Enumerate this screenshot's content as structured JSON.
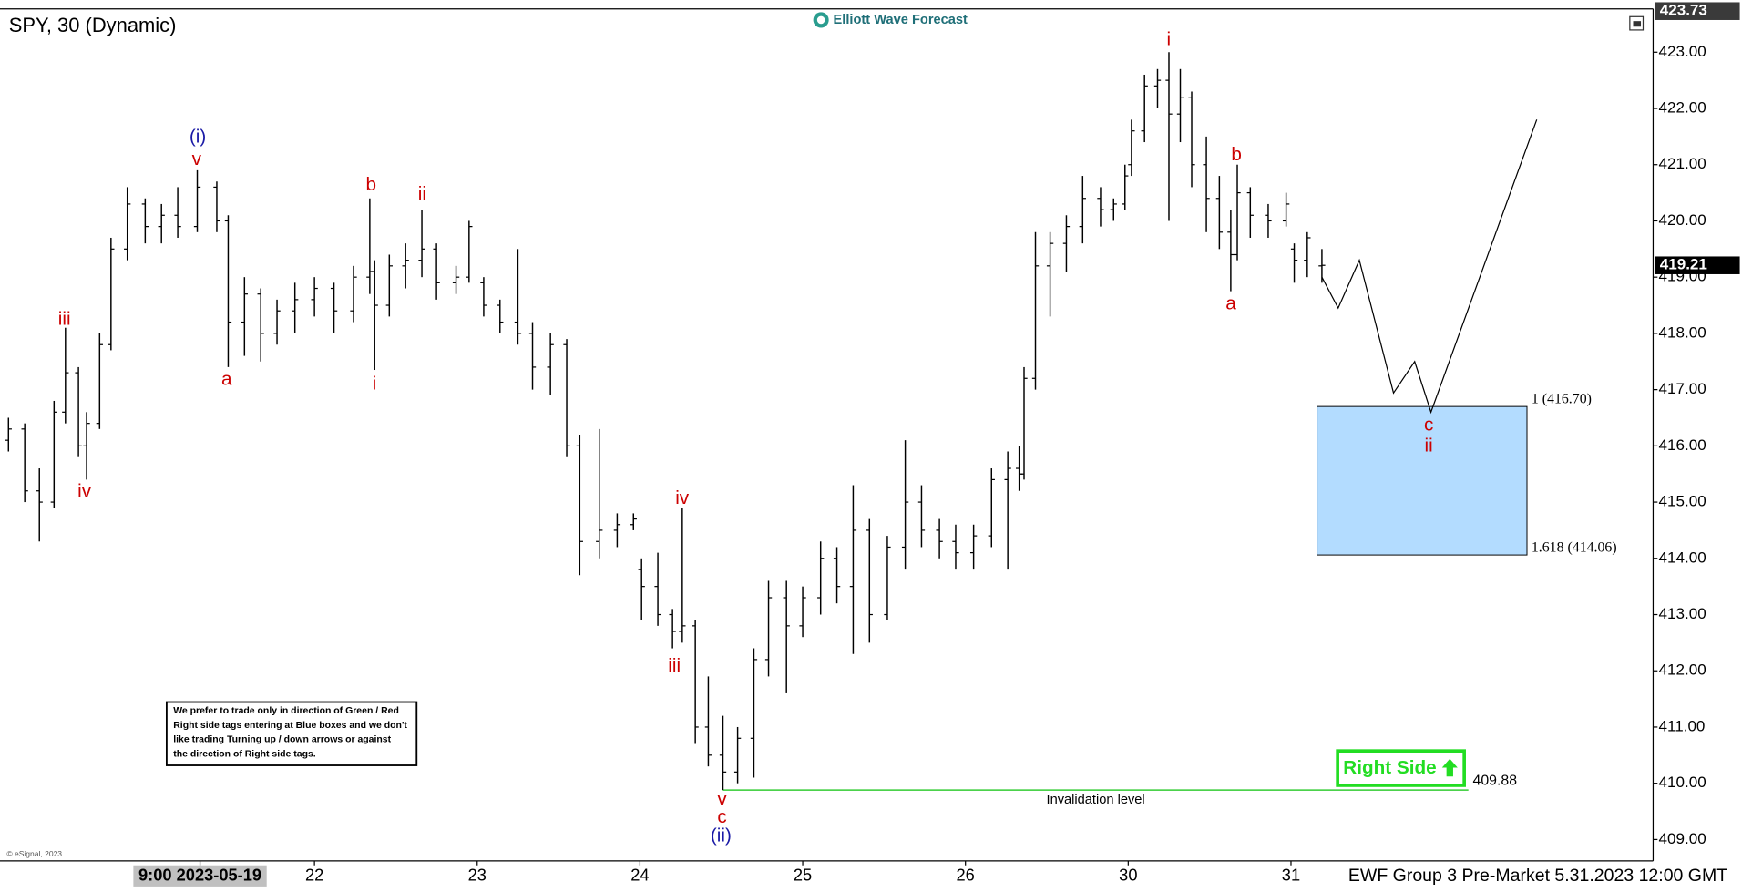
{
  "chart_data": {
    "type": "ohlc",
    "title": "SPY, 30 (Dynamic)",
    "source": "Elliott Wave Forecast",
    "footer": "EWF Group 3 Pre-Market 5.31.2023 12:00 GMT",
    "copyright": "© eSignal, 2023",
    "note": [
      "We prefer to trade only in direction of Green / Red",
      "Right side tags entering at Blue boxes and we don't",
      "like trading Turning up / down arrows or against",
      "the direction of Right side tags."
    ],
    "tag": "Right Side",
    "color": "#000000",
    "x": [
      -0.88,
      -0.78,
      -0.69,
      -0.6,
      -0.53,
      -0.45,
      -0.4,
      -0.32,
      -0.25,
      -0.15,
      -0.04,
      0.06,
      0.16,
      0.28,
      0.4,
      0.47,
      0.57,
      0.67,
      0.77,
      0.88,
      1.0,
      1.12,
      1.24,
      1.34,
      1.37,
      1.46,
      1.56,
      1.66,
      1.75,
      1.87,
      1.95,
      2.04,
      2.14,
      2.25,
      2.34,
      2.45,
      2.55,
      2.63,
      2.75,
      2.86,
      2.96,
      3.01,
      3.11,
      3.2,
      3.26,
      3.34,
      3.42,
      3.51,
      3.6,
      3.7,
      3.79,
      3.9,
      4.0,
      4.11,
      4.21,
      4.31,
      4.41,
      4.52,
      4.63,
      4.73,
      4.84,
      4.94,
      5.05,
      5.16,
      5.26,
      5.33,
      5.36,
      5.43,
      5.52,
      5.62,
      5.72,
      5.83,
      5.91,
      5.98,
      6.02,
      6.1,
      6.18,
      6.25,
      6.32,
      6.39,
      6.48,
      6.56,
      6.63,
      6.67,
      6.75,
      6.86,
      6.97,
      7.02,
      7.1,
      7.19
    ],
    "open": [
      416.1,
      416.3,
      415.2,
      415.0,
      416.6,
      417.3,
      416.0,
      416.4,
      417.8,
      419.5,
      420.3,
      419.9,
      420.1,
      419.9,
      420.6,
      420.0,
      418.2,
      418.7,
      418.0,
      418.4,
      418.6,
      418.8,
      418.4,
      419.0,
      419.1,
      418.5,
      419.2,
      419.3,
      419.5,
      418.9,
      419.0,
      418.9,
      418.5,
      418.2,
      418.0,
      417.4,
      417.8,
      416.0,
      414.3,
      414.5,
      414.6,
      413.8,
      413.5,
      413.0,
      412.7,
      412.8,
      411.0,
      410.5,
      410.2,
      410.8,
      412.2,
      413.3,
      412.8,
      413.3,
      414.0,
      413.5,
      414.5,
      413.0,
      414.2,
      415.0,
      414.5,
      414.3,
      414.1,
      414.4,
      415.4,
      415.6,
      415.5,
      417.2,
      419.2,
      419.6,
      419.9,
      420.4,
      420.2,
      420.3,
      421.0,
      421.6,
      422.4,
      422.5,
      421.9,
      422.2,
      421.0,
      420.4,
      419.8,
      419.4,
      420.5,
      420.1,
      420.0,
      419.5,
      419.3,
      419.2
    ],
    "high": [
      416.5,
      416.4,
      415.6,
      416.8,
      418.1,
      417.4,
      416.6,
      418.0,
      419.7,
      420.6,
      420.4,
      420.3,
      420.6,
      420.9,
      420.7,
      420.1,
      419.0,
      418.8,
      418.6,
      418.9,
      419.0,
      418.9,
      419.2,
      420.4,
      419.3,
      419.4,
      419.6,
      420.2,
      419.6,
      419.2,
      420.0,
      419.0,
      418.6,
      419.5,
      418.2,
      418.0,
      417.9,
      416.2,
      416.3,
      414.8,
      414.8,
      414.0,
      414.1,
      413.1,
      414.9,
      412.9,
      411.9,
      411.2,
      411.0,
      412.4,
      413.6,
      413.6,
      413.5,
      414.3,
      414.2,
      415.3,
      414.7,
      414.4,
      416.1,
      415.3,
      414.7,
      414.6,
      414.6,
      415.6,
      415.9,
      416.0,
      417.4,
      419.8,
      419.8,
      420.1,
      420.8,
      420.6,
      420.4,
      421.0,
      421.8,
      422.6,
      422.7,
      423.0,
      422.7,
      422.3,
      421.5,
      420.8,
      420.2,
      421.0,
      420.6,
      420.3,
      420.5,
      419.6,
      419.8,
      419.5
    ],
    "low": [
      415.9,
      415.0,
      414.3,
      414.9,
      416.4,
      415.8,
      415.4,
      416.3,
      417.7,
      419.3,
      419.6,
      419.6,
      419.7,
      419.8,
      419.8,
      417.4,
      417.6,
      417.5,
      417.8,
      418.0,
      418.3,
      418.0,
      418.2,
      418.7,
      417.35,
      418.3,
      418.8,
      419.0,
      418.6,
      418.7,
      418.9,
      418.3,
      418.0,
      417.8,
      417.0,
      416.9,
      415.8,
      413.7,
      414.0,
      414.2,
      414.5,
      412.9,
      412.8,
      412.4,
      412.5,
      410.7,
      410.3,
      409.88,
      410.0,
      410.1,
      411.9,
      411.6,
      412.6,
      413.0,
      413.2,
      412.3,
      412.5,
      412.9,
      413.8,
      414.2,
      414.0,
      413.8,
      413.8,
      414.2,
      413.8,
      415.2,
      415.4,
      417.0,
      418.3,
      419.1,
      419.6,
      419.9,
      420.0,
      420.2,
      420.8,
      421.4,
      422.0,
      420.0,
      421.4,
      420.6,
      419.8,
      419.5,
      418.75,
      419.3,
      419.7,
      419.7,
      419.9,
      418.9,
      419.0,
      418.9
    ],
    "close": [
      416.3,
      415.2,
      415.0,
      416.6,
      417.3,
      416.0,
      416.4,
      417.8,
      419.5,
      420.3,
      419.9,
      420.1,
      419.9,
      420.6,
      420.0,
      418.2,
      418.7,
      418.0,
      418.4,
      418.6,
      418.8,
      418.4,
      419.0,
      419.1,
      418.5,
      419.2,
      419.3,
      419.5,
      418.9,
      419.0,
      419.9,
      418.5,
      418.2,
      418.0,
      417.4,
      417.8,
      416.0,
      414.3,
      414.5,
      414.6,
      414.7,
      413.5,
      413.0,
      412.7,
      412.8,
      411.0,
      410.5,
      410.2,
      410.8,
      412.2,
      413.3,
      412.8,
      413.3,
      414.0,
      413.5,
      414.5,
      413.0,
      414.2,
      415.0,
      414.5,
      414.3,
      414.1,
      414.4,
      415.4,
      415.6,
      415.5,
      417.2,
      419.2,
      419.6,
      419.9,
      420.4,
      420.2,
      420.3,
      420.8,
      421.6,
      422.4,
      422.5,
      421.9,
      422.2,
      421.0,
      420.4,
      419.8,
      419.4,
      420.5,
      420.1,
      420.0,
      420.3,
      419.3,
      419.7,
      419.21
    ],
    "xlim": [
      -0.932,
      9.225
    ],
    "ylim": [
      408.62,
      423.77
    ],
    "xticks": [
      {
        "value": 0.297,
        "label": "9:00 2023-05-19"
      },
      {
        "value": 1,
        "label": "22"
      },
      {
        "value": 2,
        "label": "23"
      },
      {
        "value": 3,
        "label": "24"
      },
      {
        "value": 4,
        "label": "25"
      },
      {
        "value": 5,
        "label": "26"
      },
      {
        "value": 6,
        "label": "30"
      },
      {
        "value": 7,
        "label": "31"
      }
    ],
    "yticks": [
      {
        "value": 409,
        "label": "409.00"
      },
      {
        "value": 410,
        "label": "410.00"
      },
      {
        "value": 411,
        "label": "411.00"
      },
      {
        "value": 412,
        "label": "412.00"
      },
      {
        "value": 413,
        "label": "413.00"
      },
      {
        "value": 414,
        "label": "414.00"
      },
      {
        "value": 415,
        "label": "415.00"
      },
      {
        "value": 416,
        "label": "416.00"
      },
      {
        "value": 417,
        "label": "417.00"
      },
      {
        "value": 418,
        "label": "418.00"
      },
      {
        "value": 419,
        "label": "419.00"
      },
      {
        "value": 420,
        "label": "420.00"
      },
      {
        "value": 421,
        "label": "421.00"
      },
      {
        "value": 422,
        "label": "422.00"
      },
      {
        "value": 423,
        "label": "423.00"
      }
    ],
    "price_markers": [
      423.73,
      419.21
    ],
    "projection": {
      "x": [
        7.19,
        7.29,
        7.42,
        7.63,
        7.76,
        7.86,
        8.51
      ],
      "y": [
        419.0,
        418.45,
        419.3,
        416.94,
        417.5,
        416.6,
        421.8
      ]
    },
    "target_zone": {
      "x": [
        7.16,
        8.45
      ],
      "color": "#b3dcff",
      "levels": [
        {
          "value": 416.7,
          "label": "1 (416.70)"
        },
        {
          "value": 414.06,
          "label": "1.618 (414.06)"
        }
      ]
    },
    "invalidation": {
      "value": 409.88,
      "text": "Invalidation level",
      "x": [
        3.51,
        8.09
      ],
      "color": "#33cc33"
    },
    "annotations": [
      {
        "text": "(i)",
        "color": "#1a1aa6"
      },
      {
        "text": "v",
        "color": "#cc0000"
      },
      {
        "text": "iii",
        "color": "#cc0000"
      },
      {
        "text": "iv",
        "color": "#cc0000"
      },
      {
        "text": "a",
        "color": "#cc0000"
      },
      {
        "text": "b",
        "color": "#cc0000"
      },
      {
        "text": "ii",
        "color": "#cc0000"
      },
      {
        "text": "i",
        "color": "#cc0000"
      },
      {
        "text": "iv",
        "color": "#cc0000"
      },
      {
        "text": "iii",
        "color": "#cc0000"
      },
      {
        "text": "v",
        "color": "#cc0000"
      },
      {
        "text": "c",
        "color": "#cc0000"
      },
      {
        "text": "(ii)",
        "color": "#1a1aa6"
      },
      {
        "text": "i",
        "color": "#cc0000"
      },
      {
        "text": "b",
        "color": "#cc0000"
      },
      {
        "text": "a",
        "color": "#cc0000"
      },
      {
        "text": "c",
        "color": "#cc0000"
      },
      {
        "text": "ii",
        "color": "#cc0000"
      }
    ]
  }
}
